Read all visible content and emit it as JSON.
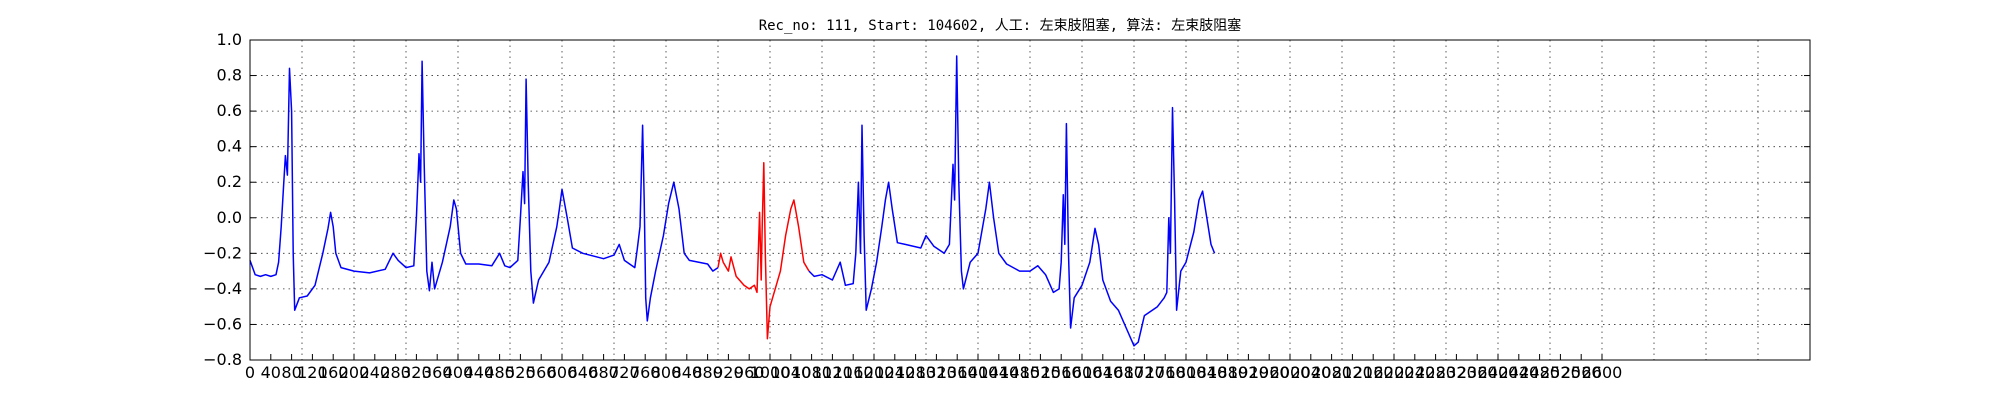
{
  "chart_data": {
    "type": "line",
    "title": "Rec_no: 111, Start: 104602, 人工: 左束肢阻塞, 算法: 左束肢阻塞",
    "xlabel": "",
    "ylabel": "",
    "xlim": [
      0,
      3000
    ],
    "ylim": [
      -0.8,
      1.0
    ],
    "grid": true,
    "y_ticks": [
      -0.8,
      -0.6,
      -0.4,
      -0.2,
      0.0,
      0.2,
      0.4,
      0.6,
      0.8,
      1.0
    ],
    "y_tick_labels": [
      "−0.8",
      "−0.6",
      "−0.4",
      "−0.2",
      "0.0",
      "0.2",
      "0.4",
      "0.6",
      "0.8",
      "1.0"
    ],
    "x_ticks": [
      0,
      40,
      80,
      120,
      160,
      200,
      240,
      280,
      320,
      360,
      400,
      440,
      480,
      520,
      560,
      600,
      640,
      680,
      720,
      760,
      800,
      840,
      880,
      920,
      960,
      1000,
      1040,
      1080,
      1120,
      1160,
      1200,
      1240,
      1280,
      1320,
      1360,
      1400,
      1440,
      1480,
      1520,
      1560,
      1600,
      1640,
      1680,
      1720,
      1760,
      1800,
      1840,
      1880,
      1920,
      1960,
      2000,
      2040,
      2080,
      2120,
      2160,
      2200,
      2240,
      2280,
      2320,
      2360,
      2400,
      2440,
      2480,
      2520,
      2560,
      2600
    ],
    "x_tick_labels": [
      "0",
      "40",
      "80",
      "120",
      "160",
      "200",
      "240",
      "280",
      "320",
      "360",
      "400",
      "440",
      "480",
      "520",
      "560",
      "600",
      "640",
      "680",
      "720",
      "760",
      "800",
      "840",
      "880",
      "920",
      "960",
      "1000",
      "1040",
      "1080",
      "1120",
      "1160",
      "1200",
      "1240",
      "1280",
      "1320",
      "1360",
      "1400",
      "1440",
      "1480",
      "1520",
      "1560",
      "1600",
      "1640",
      "1680",
      "1720",
      "1760",
      "1800",
      "1840",
      "1880",
      "1920",
      "1960",
      "2000",
      "2040",
      "2080",
      "2120",
      "2160",
      "2200",
      "2240",
      "2280",
      "2320",
      "2360",
      "2400",
      "2440",
      "2480",
      "2520",
      "2560",
      "2600"
    ],
    "x_grid_step": 100,
    "series": [
      {
        "color": "#0000ff",
        "points": [
          [
            0,
            -0.24
          ],
          [
            10,
            -0.32
          ],
          [
            20,
            -0.33
          ],
          [
            30,
            -0.32
          ],
          [
            40,
            -0.33
          ],
          [
            50,
            -0.32
          ],
          [
            55,
            -0.25
          ],
          [
            60,
            -0.05
          ],
          [
            65,
            0.2
          ],
          [
            68,
            0.35
          ],
          [
            72,
            0.24
          ],
          [
            76,
            0.84
          ],
          [
            80,
            0.6
          ],
          [
            83,
            -0.2
          ],
          [
            86,
            -0.52
          ],
          [
            95,
            -0.45
          ],
          [
            110,
            -0.44
          ],
          [
            125,
            -0.38
          ],
          [
            140,
            -0.2
          ],
          [
            150,
            -0.06
          ],
          [
            155,
            0.03
          ],
          [
            160,
            -0.05
          ],
          [
            165,
            -0.2
          ],
          [
            175,
            -0.28
          ],
          [
            200,
            -0.3
          ],
          [
            230,
            -0.31
          ],
          [
            260,
            -0.29
          ],
          [
            275,
            -0.2
          ],
          [
            285,
            -0.24
          ],
          [
            300,
            -0.28
          ],
          [
            315,
            -0.27
          ],
          [
            320,
            0.0
          ],
          [
            325,
            0.36
          ],
          [
            328,
            0.2
          ],
          [
            331,
            0.88
          ],
          [
            335,
            0.3
          ],
          [
            340,
            -0.3
          ],
          [
            345,
            -0.41
          ],
          [
            350,
            -0.25
          ],
          [
            355,
            -0.4
          ],
          [
            370,
            -0.25
          ],
          [
            385,
            -0.05
          ],
          [
            392,
            0.1
          ],
          [
            397,
            0.05
          ],
          [
            405,
            -0.2
          ],
          [
            415,
            -0.26
          ],
          [
            440,
            -0.26
          ],
          [
            465,
            -0.27
          ],
          [
            480,
            -0.2
          ],
          [
            490,
            -0.27
          ],
          [
            500,
            -0.28
          ],
          [
            515,
            -0.24
          ],
          [
            520,
            0.0
          ],
          [
            525,
            0.26
          ],
          [
            528,
            0.08
          ],
          [
            531,
            0.78
          ],
          [
            535,
            0.2
          ],
          [
            540,
            -0.3
          ],
          [
            545,
            -0.48
          ],
          [
            555,
            -0.35
          ],
          [
            575,
            -0.25
          ],
          [
            590,
            -0.05
          ],
          [
            595,
            0.05
          ],
          [
            600,
            0.16
          ],
          [
            610,
            0.0
          ],
          [
            620,
            -0.17
          ],
          [
            640,
            -0.2
          ],
          [
            680,
            -0.23
          ],
          [
            700,
            -0.21
          ],
          [
            710,
            -0.15
          ],
          [
            720,
            -0.24
          ],
          [
            740,
            -0.28
          ],
          [
            745,
            -0.17
          ],
          [
            750,
            -0.05
          ],
          [
            755,
            0.52
          ],
          [
            758,
            0.1
          ],
          [
            761,
            -0.45
          ],
          [
            764,
            -0.58
          ],
          [
            770,
            -0.45
          ],
          [
            780,
            -0.3
          ],
          [
            795,
            -0.1
          ],
          [
            805,
            0.08
          ],
          [
            815,
            0.2
          ],
          [
            825,
            0.05
          ],
          [
            835,
            -0.2
          ],
          [
            845,
            -0.24
          ],
          [
            880,
            -0.26
          ],
          [
            890,
            -0.3
          ],
          [
            900,
            -0.28
          ]
        ]
      },
      {
        "color": "#ff0000",
        "points": [
          [
            900,
            -0.28
          ],
          [
            905,
            -0.2
          ],
          [
            910,
            -0.25
          ],
          [
            920,
            -0.3
          ],
          [
            925,
            -0.22
          ],
          [
            935,
            -0.33
          ],
          [
            950,
            -0.38
          ],
          [
            960,
            -0.4
          ],
          [
            970,
            -0.38
          ],
          [
            975,
            -0.42
          ],
          [
            980,
            0.03
          ],
          [
            983,
            -0.35
          ],
          [
            985,
            -0.05
          ],
          [
            988,
            0.31
          ],
          [
            991,
            -0.2
          ],
          [
            995,
            -0.68
          ],
          [
            1000,
            -0.5
          ],
          [
            1010,
            -0.4
          ],
          [
            1020,
            -0.3
          ],
          [
            1030,
            -0.1
          ],
          [
            1040,
            0.05
          ],
          [
            1046,
            0.1
          ],
          [
            1055,
            -0.05
          ],
          [
            1065,
            -0.25
          ],
          [
            1075,
            -0.3
          ]
        ]
      },
      {
        "color": "#0000ff",
        "points": [
          [
            1075,
            -0.3
          ],
          [
            1085,
            -0.33
          ],
          [
            1100,
            -0.32
          ],
          [
            1120,
            -0.35
          ],
          [
            1135,
            -0.25
          ],
          [
            1145,
            -0.38
          ],
          [
            1160,
            -0.37
          ],
          [
            1165,
            -0.2
          ],
          [
            1170,
            0.2
          ],
          [
            1174,
            -0.2
          ],
          [
            1177,
            0.52
          ],
          [
            1181,
            -0.1
          ],
          [
            1185,
            -0.52
          ],
          [
            1195,
            -0.4
          ],
          [
            1205,
            -0.25
          ],
          [
            1215,
            -0.05
          ],
          [
            1222,
            0.1
          ],
          [
            1228,
            0.2
          ],
          [
            1235,
            0.05
          ],
          [
            1245,
            -0.14
          ],
          [
            1260,
            -0.15
          ],
          [
            1290,
            -0.17
          ],
          [
            1300,
            -0.1
          ],
          [
            1315,
            -0.16
          ],
          [
            1335,
            -0.2
          ],
          [
            1345,
            -0.15
          ],
          [
            1352,
            0.3
          ],
          [
            1355,
            0.1
          ],
          [
            1359,
            0.91
          ],
          [
            1363,
            0.2
          ],
          [
            1368,
            -0.3
          ],
          [
            1372,
            -0.4
          ],
          [
            1385,
            -0.25
          ],
          [
            1400,
            -0.2
          ],
          [
            1415,
            0.05
          ],
          [
            1422,
            0.2
          ],
          [
            1430,
            0.0
          ],
          [
            1440,
            -0.2
          ],
          [
            1455,
            -0.26
          ],
          [
            1480,
            -0.3
          ],
          [
            1500,
            -0.3
          ],
          [
            1515,
            -0.27
          ],
          [
            1530,
            -0.32
          ],
          [
            1545,
            -0.42
          ],
          [
            1556,
            -0.4
          ],
          [
            1560,
            -0.25
          ],
          [
            1564,
            0.13
          ],
          [
            1567,
            -0.15
          ],
          [
            1570,
            0.53
          ],
          [
            1574,
            -0.2
          ],
          [
            1578,
            -0.62
          ],
          [
            1585,
            -0.45
          ],
          [
            1600,
            -0.38
          ],
          [
            1615,
            -0.25
          ],
          [
            1625,
            -0.06
          ],
          [
            1632,
            -0.15
          ],
          [
            1640,
            -0.35
          ],
          [
            1655,
            -0.47
          ],
          [
            1670,
            -0.52
          ],
          [
            1685,
            -0.62
          ],
          [
            1700,
            -0.72
          ],
          [
            1708,
            -0.7
          ],
          [
            1720,
            -0.55
          ],
          [
            1745,
            -0.5
          ],
          [
            1758,
            -0.45
          ],
          [
            1763,
            -0.42
          ],
          [
            1767,
            0.0
          ],
          [
            1770,
            -0.2
          ],
          [
            1774,
            0.62
          ],
          [
            1778,
            0.1
          ],
          [
            1782,
            -0.52
          ],
          [
            1790,
            -0.3
          ],
          [
            1800,
            -0.25
          ],
          [
            1815,
            -0.08
          ],
          [
            1825,
            0.1
          ],
          [
            1832,
            0.15
          ],
          [
            1840,
            0.0
          ],
          [
            1848,
            -0.15
          ],
          [
            1855,
            -0.2
          ]
        ]
      }
    ]
  }
}
